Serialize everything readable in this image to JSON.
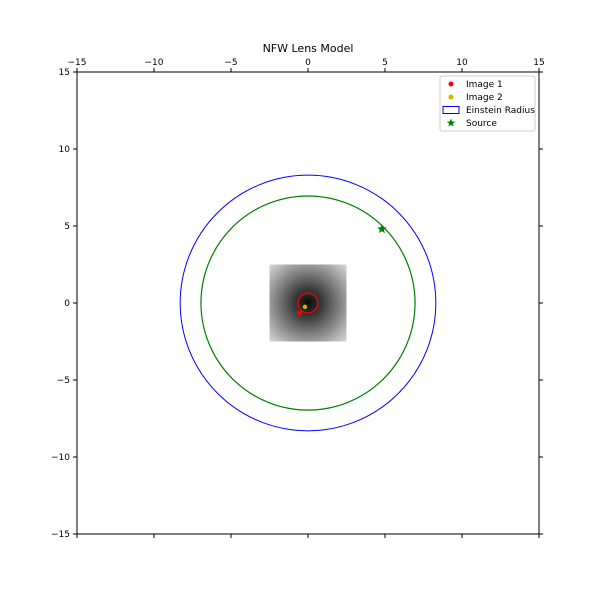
{
  "chart_data": {
    "type": "scatter",
    "title": "NFW Lens Model",
    "xlim": [
      -15,
      15
    ],
    "ylim": [
      -15,
      15
    ],
    "x_ticks": [
      -15,
      -10,
      -5,
      0,
      5,
      10,
      15
    ],
    "y_ticks": [
      -15,
      -10,
      -5,
      0,
      5,
      10,
      15
    ],
    "x_tick_labels": [
      "−15",
      "−10",
      "−5",
      "0",
      "5",
      "10",
      "15"
    ],
    "y_tick_labels": [
      "−15",
      "−10",
      "−5",
      "0",
      "5",
      "10",
      "15"
    ],
    "x_ticks_on_top": true,
    "grid": false,
    "legend_position": "upper right",
    "legend": [
      {
        "label": "Image 1",
        "marker": "circle",
        "color": "#ff0000"
      },
      {
        "label": "Image 2",
        "marker": "circle",
        "color": "#bfbf00"
      },
      {
        "label": "Einstein Radius",
        "marker": "rectangle",
        "color": "#0000ff"
      },
      {
        "label": "Source",
        "marker": "star",
        "color": "#008000"
      }
    ],
    "source": {
      "x": 4.8,
      "y": 4.8,
      "color": "#008000"
    },
    "image_1": {
      "x": -0.55,
      "y": -0.65,
      "color": "#ff0000"
    },
    "image_2": {
      "x": -0.2,
      "y": -0.25,
      "color": "#bfbf00"
    },
    "einstein_radius_circle": {
      "cx": 0,
      "cy": 0,
      "r": 8.3,
      "color": "#0000ff"
    },
    "source_circle": {
      "cx": 0,
      "cy": 0,
      "r": 6.95,
      "color": "#008000"
    },
    "inner_critical_curve": {
      "cx": 0,
      "cy": 0,
      "r": 0.65,
      "color": "#ff0000"
    },
    "density_map": {
      "xmin": -2.5,
      "xmax": 2.5,
      "ymin": -2.5,
      "ymax": 2.5,
      "colormap": "gray"
    }
  }
}
